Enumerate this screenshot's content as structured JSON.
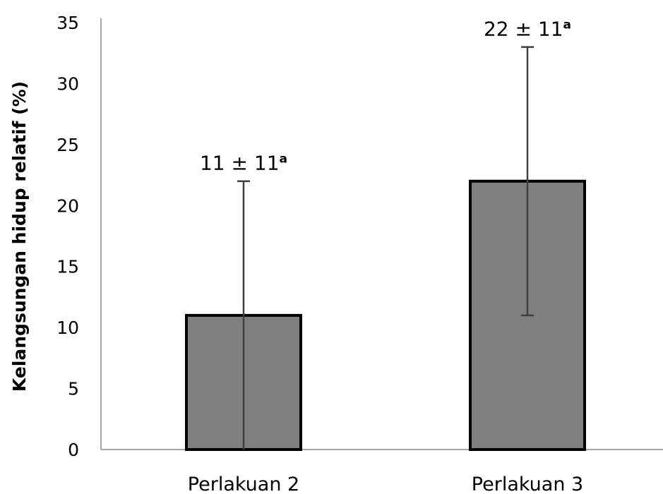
{
  "chart_data": {
    "type": "bar",
    "title": "",
    "xlabel": "",
    "ylabel": "Kelangsungan hidup relatif (%)",
    "ylim": [
      0,
      35
    ],
    "y_ticks": [
      0,
      5,
      10,
      15,
      20,
      25,
      30,
      35
    ],
    "grid": false,
    "categories": [
      "Perlakuan 2",
      "Perlakuan 3"
    ],
    "values": [
      11,
      22
    ],
    "error": [
      11,
      11
    ],
    "data_labels": [
      {
        "text": "11 ± 11",
        "sup": "a"
      },
      {
        "text": "22 ± 11",
        "sup": "a"
      }
    ],
    "colors": {
      "bar_fill": "#7f7f7f",
      "bar_edge": "#000000",
      "error_bar": "#404040",
      "axis": "#a6a6a6"
    }
  }
}
